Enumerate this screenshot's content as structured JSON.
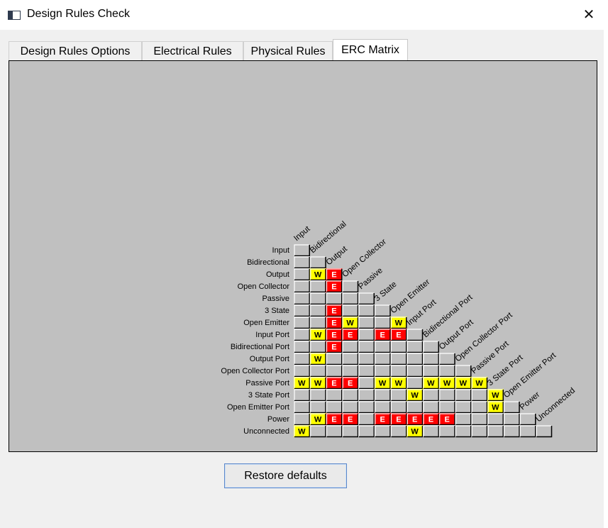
{
  "window": {
    "title": "Design Rules Check",
    "close_glyph": "✕",
    "icon": "app-window-icon"
  },
  "tabs": [
    {
      "label": "Design Rules Options",
      "active": false
    },
    {
      "label": "Electrical Rules",
      "active": false
    },
    {
      "label": "Physical Rules",
      "active": false
    },
    {
      "label": "ERC Matrix",
      "active": true
    }
  ],
  "matrix": {
    "row_labels": [
      "Input",
      "Bidirectional",
      "Output",
      "Open Collector",
      "Passive",
      "3 State",
      "Open Emitter",
      "Input Port",
      "Bidirectional Port",
      "Output Port",
      "Open Collector Port",
      "Passive Port",
      "3 State Port",
      "Open Emitter Port",
      "Power",
      "Unconnected"
    ],
    "col_labels": [
      "Input",
      "Bidirectional",
      "Output",
      "Open Collector",
      "Passive",
      "3 State",
      "Open Emitter",
      "Input Port",
      "Bidirectional Port",
      "Output Port",
      "Open Collector Port",
      "Passive Port",
      "3 State Port",
      "Open Emitter Port",
      "Power",
      "Unconnected"
    ],
    "legend": {
      "W": "W",
      "E": "E"
    },
    "colors": {
      "W": "#ffff00",
      "E": "#ff0000",
      "cell": "#c0c0c0",
      "background": "#c0c0c0"
    },
    "cells": [
      [
        "",
        "",
        "",
        "",
        "",
        "",
        "",
        "",
        "",
        "",
        "",
        "",
        "",
        "",
        "",
        ""
      ],
      [
        "",
        "",
        "",
        "",
        "",
        "",
        "",
        "",
        "",
        "",
        "",
        "",
        "",
        "",
        "",
        ""
      ],
      [
        "",
        "W",
        "E",
        "",
        "",
        "",
        "",
        "",
        "",
        "",
        "",
        "",
        "",
        "",
        "",
        ""
      ],
      [
        "",
        "",
        "E",
        "",
        "",
        "",
        "",
        "",
        "",
        "",
        "",
        "",
        "",
        "",
        "",
        ""
      ],
      [
        "",
        "",
        "",
        "",
        "",
        "",
        "",
        "",
        "",
        "",
        "",
        "",
        "",
        "",
        "",
        ""
      ],
      [
        "",
        "",
        "E",
        "",
        "",
        "",
        "",
        "",
        "",
        "",
        "",
        "",
        "",
        "",
        "",
        ""
      ],
      [
        "",
        "",
        "E",
        "W",
        "",
        "",
        "W",
        "",
        "",
        "",
        "",
        "",
        "",
        "",
        "",
        ""
      ],
      [
        "",
        "W",
        "E",
        "E",
        "",
        "E",
        "E",
        "",
        "",
        "",
        "",
        "",
        "",
        "",
        "",
        ""
      ],
      [
        "",
        "",
        "E",
        "",
        "",
        "",
        "",
        "",
        "",
        "",
        "",
        "",
        "",
        "",
        "",
        ""
      ],
      [
        "",
        "W",
        "",
        "",
        "",
        "",
        "",
        "",
        "",
        "",
        "",
        "",
        "",
        "",
        "",
        ""
      ],
      [
        "",
        "",
        "",
        "",
        "",
        "",
        "",
        "",
        "",
        "",
        "",
        "",
        "",
        "",
        "",
        ""
      ],
      [
        "W",
        "W",
        "E",
        "E",
        "",
        "W",
        "W",
        "",
        "W",
        "W",
        "W",
        "W",
        "",
        "",
        "",
        ""
      ],
      [
        "",
        "",
        "",
        "",
        "",
        "",
        "",
        "W",
        "",
        "",
        "",
        "",
        "W",
        "",
        "",
        ""
      ],
      [
        "",
        "",
        "",
        "",
        "",
        "",
        "",
        "",
        "",
        "",
        "",
        "",
        "W",
        "",
        "",
        ""
      ],
      [
        "",
        "W",
        "E",
        "E",
        "",
        "E",
        "E",
        "E",
        "E",
        "E",
        "",
        "",
        "",
        "",
        "",
        ""
      ],
      [
        "W",
        "",
        "",
        "",
        "",
        "",
        "",
        "W",
        "",
        "",
        "",
        "",
        "",
        "",
        "",
        ""
      ]
    ]
  },
  "restore_button": {
    "label": "Restore defaults"
  }
}
